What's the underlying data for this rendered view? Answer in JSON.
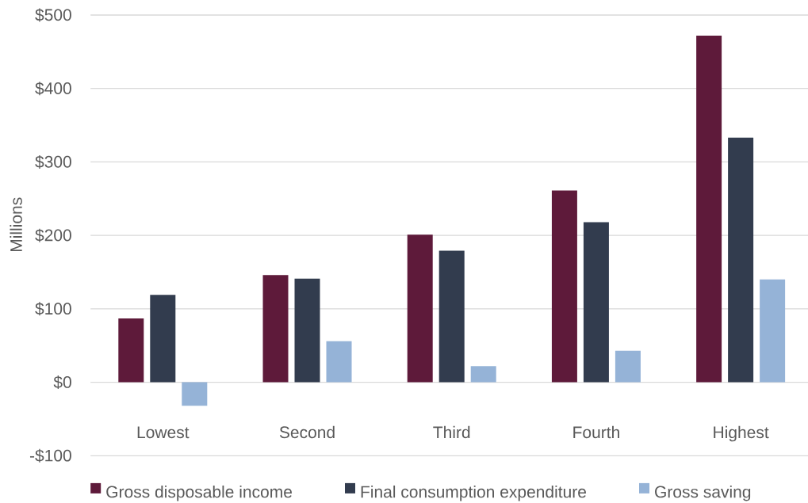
{
  "chart_data": {
    "type": "bar",
    "ylabel": "Millions",
    "categories": [
      "Lowest",
      "Second",
      "Third",
      "Fourth",
      "Highest"
    ],
    "series": [
      {
        "name": "Gross disposable income",
        "color": "#5e1a3a",
        "values": [
          87,
          146,
          201,
          261,
          472
        ]
      },
      {
        "name": "Final consumption expenditure",
        "color": "#323c4e",
        "values": [
          119,
          141,
          179,
          218,
          333
        ]
      },
      {
        "name": "Gross saving",
        "color": "#95b3d7",
        "values": [
          -32,
          56,
          22,
          43,
          140
        ]
      }
    ],
    "ylim": [
      -100,
      500
    ],
    "yticks": [
      {
        "value": -100,
        "label": "-$100"
      },
      {
        "value": 0,
        "label": "$0"
      },
      {
        "value": 100,
        "label": "$100"
      },
      {
        "value": 200,
        "label": "$200"
      },
      {
        "value": 300,
        "label": "$300"
      },
      {
        "value": 400,
        "label": "$400"
      },
      {
        "value": 500,
        "label": "$500"
      }
    ],
    "grid": "y",
    "legend": "bottom"
  }
}
